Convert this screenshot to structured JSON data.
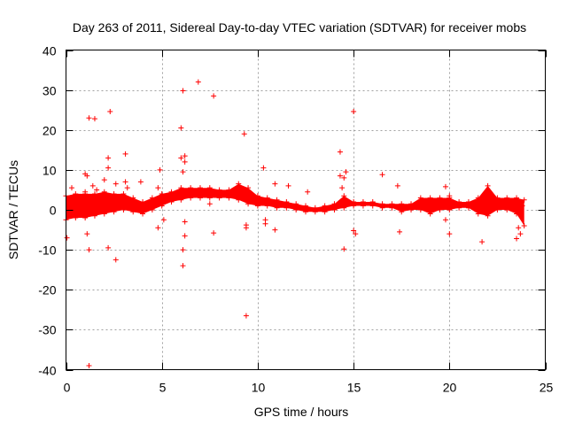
{
  "chart_data": {
    "type": "scatter",
    "title": "Day 263 of 2011, Sidereal Day-to-day VTEC variation (SDTVAR) for receiver mobs",
    "xlabel": "GPS time / hours",
    "ylabel": "SDTVAR / TECUs",
    "xlim": [
      0,
      25
    ],
    "ylim": [
      -40,
      40
    ],
    "xticks": [
      0,
      5,
      10,
      15,
      20,
      25
    ],
    "yticks": [
      -40,
      -30,
      -20,
      -10,
      0,
      10,
      20,
      30,
      40
    ],
    "grid": true,
    "marker": "+",
    "color": "#ff0000",
    "series": [
      {
        "name": "SDTVAR",
        "dense_band": [
          {
            "x": 0.0,
            "lo": -2.5,
            "hi": 3.5
          },
          {
            "x": 0.5,
            "lo": -2.0,
            "hi": 4.0
          },
          {
            "x": 1.0,
            "lo": -2.0,
            "hi": 4.0
          },
          {
            "x": 1.5,
            "lo": -1.5,
            "hi": 4.0
          },
          {
            "x": 2.0,
            "lo": -1.0,
            "hi": 4.5
          },
          {
            "x": 2.5,
            "lo": -0.5,
            "hi": 4.0
          },
          {
            "x": 3.0,
            "lo": 0.0,
            "hi": 4.0
          },
          {
            "x": 3.5,
            "lo": -0.5,
            "hi": 3.0
          },
          {
            "x": 4.0,
            "lo": -1.0,
            "hi": 2.0
          },
          {
            "x": 4.5,
            "lo": 0.0,
            "hi": 3.0
          },
          {
            "x": 5.0,
            "lo": 1.0,
            "hi": 4.0
          },
          {
            "x": 5.5,
            "lo": 2.0,
            "hi": 4.5
          },
          {
            "x": 6.0,
            "lo": 2.5,
            "hi": 5.5
          },
          {
            "x": 6.5,
            "lo": 3.0,
            "hi": 5.5
          },
          {
            "x": 7.0,
            "lo": 3.0,
            "hi": 5.5
          },
          {
            "x": 7.5,
            "lo": 3.0,
            "hi": 5.5
          },
          {
            "x": 8.0,
            "lo": 3.0,
            "hi": 5.0
          },
          {
            "x": 8.5,
            "lo": 3.0,
            "hi": 5.0
          },
          {
            "x": 9.0,
            "lo": 2.5,
            "hi": 6.5
          },
          {
            "x": 9.5,
            "lo": 1.5,
            "hi": 5.5
          },
          {
            "x": 10.0,
            "lo": 1.0,
            "hi": 3.5
          },
          {
            "x": 10.5,
            "lo": 1.0,
            "hi": 3.0
          },
          {
            "x": 11.0,
            "lo": 0.5,
            "hi": 2.5
          },
          {
            "x": 11.5,
            "lo": 0.5,
            "hi": 2.0
          },
          {
            "x": 12.0,
            "lo": 0.0,
            "hi": 1.5
          },
          {
            "x": 12.5,
            "lo": -0.5,
            "hi": 1.0
          },
          {
            "x": 13.0,
            "lo": -0.5,
            "hi": 0.5
          },
          {
            "x": 13.5,
            "lo": -0.5,
            "hi": 1.0
          },
          {
            "x": 14.0,
            "lo": 0.0,
            "hi": 1.5
          },
          {
            "x": 14.5,
            "lo": 0.5,
            "hi": 3.5
          },
          {
            "x": 15.0,
            "lo": 1.0,
            "hi": 2.0
          },
          {
            "x": 15.5,
            "lo": 1.0,
            "hi": 2.0
          },
          {
            "x": 16.0,
            "lo": 1.0,
            "hi": 2.0
          },
          {
            "x": 16.5,
            "lo": 0.5,
            "hi": 1.5
          },
          {
            "x": 17.0,
            "lo": 0.5,
            "hi": 1.5
          },
          {
            "x": 17.5,
            "lo": -0.5,
            "hi": 1.5
          },
          {
            "x": 18.0,
            "lo": 0.0,
            "hi": 1.5
          },
          {
            "x": 18.5,
            "lo": 0.0,
            "hi": 3.0
          },
          {
            "x": 19.0,
            "lo": -1.0,
            "hi": 3.0
          },
          {
            "x": 19.5,
            "lo": 0.0,
            "hi": 3.0
          },
          {
            "x": 20.0,
            "lo": 0.0,
            "hi": 3.0
          },
          {
            "x": 20.5,
            "lo": 0.5,
            "hi": 2.0
          },
          {
            "x": 21.0,
            "lo": 0.5,
            "hi": 2.0
          },
          {
            "x": 21.5,
            "lo": -1.0,
            "hi": 3.0
          },
          {
            "x": 22.0,
            "lo": -1.5,
            "hi": 6.0
          },
          {
            "x": 22.5,
            "lo": 0.0,
            "hi": 3.0
          },
          {
            "x": 23.0,
            "lo": 0.0,
            "hi": 3.0
          },
          {
            "x": 23.5,
            "lo": -1.0,
            "hi": 3.0
          },
          {
            "x": 23.9,
            "lo": -4.0,
            "hi": 2.5
          }
        ],
        "outliers": [
          [
            0.05,
            -7.0
          ],
          [
            0.3,
            5.5
          ],
          [
            1.0,
            4.5
          ],
          [
            1.0,
            9.0
          ],
          [
            1.1,
            8.5
          ],
          [
            1.2,
            23.0
          ],
          [
            1.5,
            22.8
          ],
          [
            1.2,
            -39.0
          ],
          [
            1.2,
            -10.0
          ],
          [
            1.1,
            -6.0
          ],
          [
            1.4,
            6.0
          ],
          [
            1.6,
            5.0
          ],
          [
            2.0,
            7.5
          ],
          [
            2.2,
            13.0
          ],
          [
            2.2,
            10.5
          ],
          [
            2.3,
            24.6
          ],
          [
            2.2,
            -9.5
          ],
          [
            2.6,
            -12.5
          ],
          [
            2.6,
            6.5
          ],
          [
            3.1,
            14.0
          ],
          [
            3.1,
            7.0
          ],
          [
            3.2,
            5.5
          ],
          [
            3.9,
            7.0
          ],
          [
            4.9,
            10.0
          ],
          [
            4.8,
            5.5
          ],
          [
            4.8,
            -4.5
          ],
          [
            5.1,
            -2.5
          ],
          [
            6.0,
            20.5
          ],
          [
            6.1,
            29.8
          ],
          [
            6.0,
            13.0
          ],
          [
            6.2,
            12.0
          ],
          [
            6.2,
            13.5
          ],
          [
            6.1,
            -14.0
          ],
          [
            6.1,
            -10.0
          ],
          [
            6.2,
            -6.5
          ],
          [
            6.2,
            -3.0
          ],
          [
            6.1,
            9.5
          ],
          [
            6.9,
            32.0
          ],
          [
            7.7,
            28.5
          ],
          [
            7.7,
            -5.8
          ],
          [
            7.5,
            1.5
          ],
          [
            9.3,
            19.0
          ],
          [
            9.4,
            -26.5
          ],
          [
            9.4,
            -4.5
          ],
          [
            9.4,
            -3.8
          ],
          [
            10.3,
            10.5
          ],
          [
            10.4,
            -3.5
          ],
          [
            10.4,
            -2.5
          ],
          [
            10.9,
            6.5
          ],
          [
            10.9,
            -5.0
          ],
          [
            11.6,
            6.0
          ],
          [
            12.6,
            4.5
          ],
          [
            14.3,
            14.5
          ],
          [
            14.3,
            8.5
          ],
          [
            14.4,
            5.5
          ],
          [
            14.5,
            8.0
          ],
          [
            14.6,
            9.5
          ],
          [
            14.5,
            -9.8
          ],
          [
            15.0,
            24.6
          ],
          [
            15.0,
            -5.2
          ],
          [
            15.1,
            -6.0
          ],
          [
            16.5,
            8.8
          ],
          [
            17.3,
            6.0
          ],
          [
            17.4,
            -5.5
          ],
          [
            19.8,
            5.8
          ],
          [
            19.8,
            -2.5
          ],
          [
            20.0,
            3.5
          ],
          [
            20.0,
            -6.0
          ],
          [
            21.7,
            -8.0
          ],
          [
            23.5,
            -7.2
          ],
          [
            23.6,
            -4.5
          ],
          [
            23.7,
            -6.0
          ],
          [
            23.8,
            1.0
          ]
        ]
      }
    ]
  }
}
